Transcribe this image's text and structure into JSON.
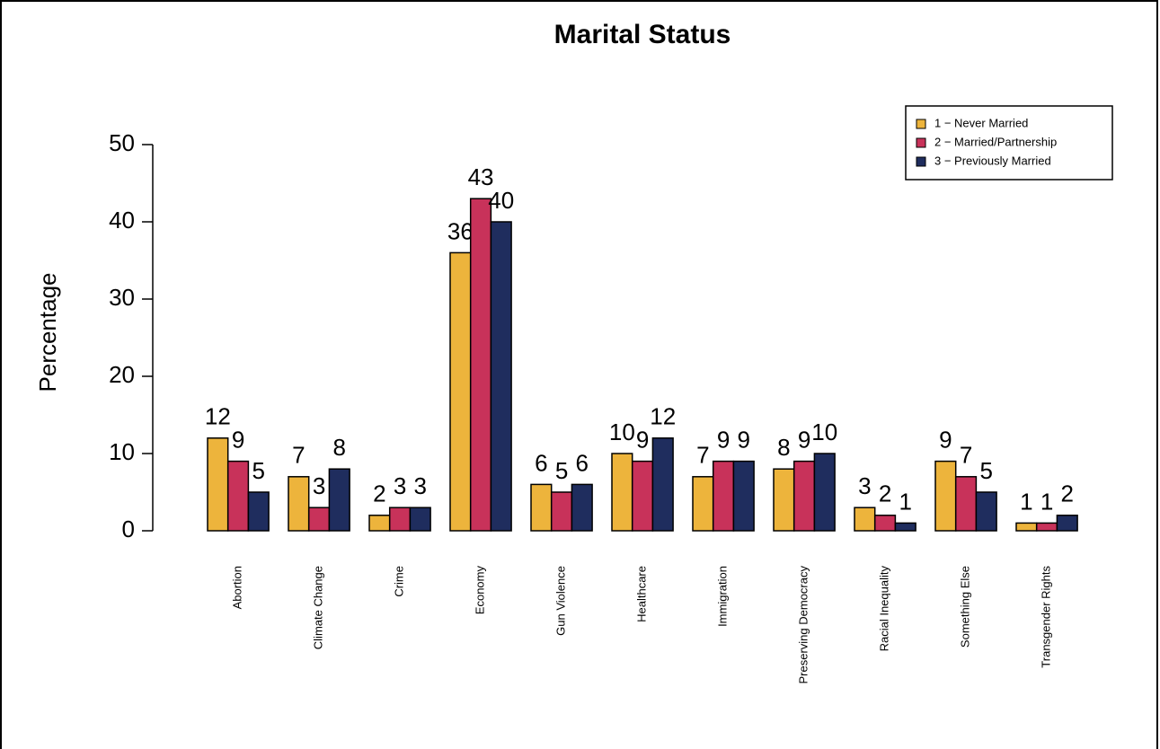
{
  "chart_data": {
    "type": "bar",
    "title": "Marital Status",
    "y_label": "Percentage",
    "categories": [
      "Abortion",
      "Climate Change",
      "Crime",
      "Economy",
      "Gun Violence",
      "Healthcare",
      "Immigration",
      "Preserving Democracy",
      "Racial Inequality",
      "Something Else",
      "Transgender Rights"
    ],
    "series": [
      {
        "name": "1 − Never Married",
        "color": "#EDB43C",
        "values": [
          12,
          7,
          2,
          36,
          6,
          10,
          7,
          8,
          3,
          9,
          1
        ]
      },
      {
        "name": "2 − Married/Partnership",
        "color": "#C8325A",
        "values": [
          9,
          3,
          3,
          43,
          5,
          9,
          9,
          9,
          2,
          7,
          1
        ]
      },
      {
        "name": "3 − Previously Married",
        "color": "#1F2D5E",
        "values": [
          5,
          8,
          3,
          40,
          6,
          12,
          9,
          10,
          1,
          5,
          2
        ]
      }
    ],
    "ylim": [
      0,
      50
    ],
    "yticks": [
      0,
      10,
      20,
      30,
      40,
      50
    ],
    "legend": "top-right"
  }
}
